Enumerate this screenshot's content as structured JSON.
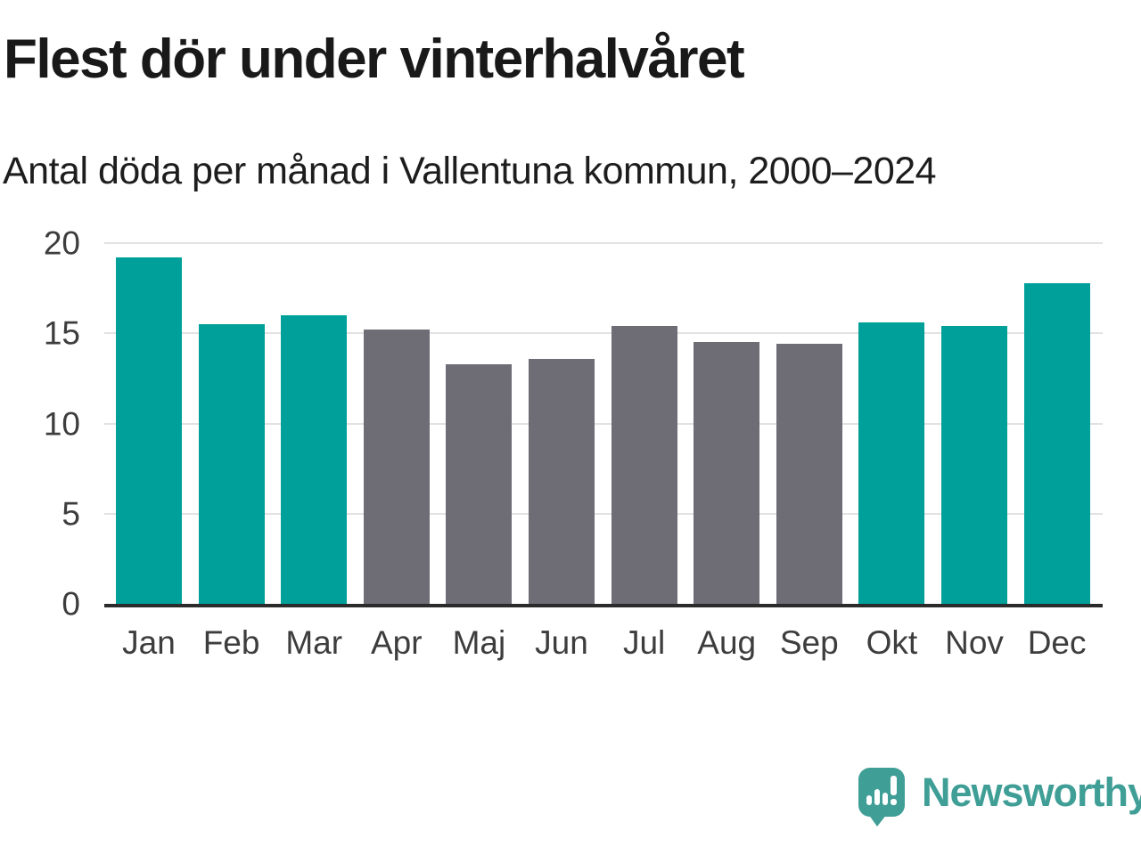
{
  "header": {
    "title": "Flest dör under vinterhalvåret",
    "subtitle": "Antal döda per månad i Vallentuna kommun, 2000–2024"
  },
  "chart_data": {
    "type": "bar",
    "title": "Flest dör under vinterhalvåret",
    "subtitle": "Antal döda per månad i Vallentuna kommun, 2000–2024",
    "categories": [
      "Jan",
      "Feb",
      "Mar",
      "Apr",
      "Maj",
      "Jun",
      "Jul",
      "Aug",
      "Sep",
      "Okt",
      "Nov",
      "Dec"
    ],
    "values": [
      19.2,
      15.5,
      16.0,
      15.2,
      13.3,
      13.6,
      15.4,
      14.5,
      14.4,
      15.6,
      15.4,
      17.8
    ],
    "colors": [
      "#00a09a",
      "#00a09a",
      "#00a09a",
      "#6e6d75",
      "#6e6d75",
      "#6e6d75",
      "#6e6d75",
      "#6e6d75",
      "#6e6d75",
      "#00a09a",
      "#00a09a",
      "#00a09a"
    ],
    "xlabel": "",
    "ylabel": "",
    "ylim": [
      0,
      20
    ],
    "yticks": [
      0,
      5,
      10,
      15,
      20
    ],
    "grid": true,
    "legend": "none"
  },
  "footer": {
    "brand": "Newsworthy",
    "logo_icon": "newsworthy-speech-bubble-bar-chart-icon",
    "brand_color": "#3f9e96",
    "teal_color": "#00a09a",
    "gray_color": "#6e6d75"
  }
}
